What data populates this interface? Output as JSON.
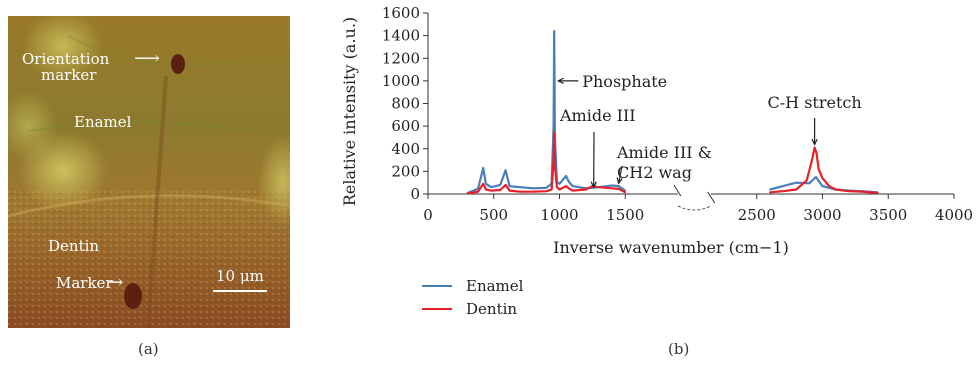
{
  "panel_a": {
    "caption": "(a)",
    "labels": {
      "orientation_marker_1": "Orientation",
      "orientation_marker_2": "marker",
      "enamel": "Enamel",
      "dentin": "Dentin",
      "marker": "Marker",
      "scale_bar": "10 μm"
    }
  },
  "panel_b": {
    "caption": "(b)",
    "legend": [
      {
        "name": "Enamel",
        "color": "#4a7ebb"
      },
      {
        "name": "Dentin",
        "color": "#e8202a"
      }
    ]
  },
  "chart_data": {
    "type": "line",
    "title": "",
    "xlabel": "Inverse wavenumber (cm−1)",
    "ylabel": "Relative intensity (a.u.)",
    "xlim": [
      0,
      4000
    ],
    "ylim": [
      0,
      1600
    ],
    "x_ticks": [
      0,
      500,
      1000,
      1500,
      2500,
      3000,
      3500,
      4000
    ],
    "y_ticks": [
      0,
      200,
      400,
      600,
      800,
      1000,
      1200,
      1400,
      1600
    ],
    "axis_break": [
      1900,
      2150
    ],
    "grid": false,
    "legend_position": "bottom-left",
    "series": [
      {
        "name": "Enamel",
        "color": "#4a7ebb",
        "x": [
          300,
          380,
          420,
          440,
          480,
          550,
          590,
          620,
          700,
          800,
          900,
          940,
          955,
          960,
          965,
          980,
          1000,
          1050,
          1070,
          1100,
          1200,
          1300,
          1400,
          1450,
          1500,
          2600,
          2700,
          2800,
          2900,
          2950,
          3000,
          3100,
          3200,
          3300,
          3420
        ],
        "y": [
          10,
          45,
          230,
          90,
          60,
          80,
          210,
          70,
          60,
          50,
          55,
          90,
          600,
          1440,
          500,
          110,
          90,
          160,
          110,
          70,
          50,
          60,
          75,
          70,
          30,
          40,
          70,
          100,
          95,
          150,
          70,
          40,
          30,
          25,
          15
        ]
      },
      {
        "name": "Dentin",
        "color": "#e8202a",
        "x": [
          300,
          380,
          420,
          440,
          480,
          550,
          590,
          620,
          700,
          800,
          900,
          940,
          955,
          960,
          965,
          980,
          1000,
          1050,
          1070,
          1100,
          1200,
          1250,
          1300,
          1400,
          1450,
          1500,
          2600,
          2700,
          2800,
          2880,
          2920,
          2940,
          2955,
          2970,
          3000,
          3050,
          3100,
          3200,
          3300,
          3420
        ],
        "y": [
          5,
          20,
          90,
          40,
          30,
          35,
          80,
          30,
          20,
          20,
          25,
          40,
          300,
          540,
          250,
          60,
          40,
          70,
          50,
          30,
          40,
          70,
          60,
          50,
          45,
          15,
          15,
          25,
          40,
          120,
          300,
          410,
          360,
          220,
          140,
          70,
          40,
          25,
          20,
          10
        ]
      }
    ],
    "annotations": [
      {
        "text": "Phosphate",
        "x": 960,
        "y": 1000
      },
      {
        "text": "Amide III",
        "x": 1260,
        "y": 60
      },
      {
        "text": "Amide III &",
        "x": 1450,
        "y": 60
      },
      {
        "text": "CH2 wag",
        "x": 1450,
        "y": 60
      },
      {
        "text": "C-H stretch",
        "x": 2940,
        "y": 420
      }
    ]
  }
}
